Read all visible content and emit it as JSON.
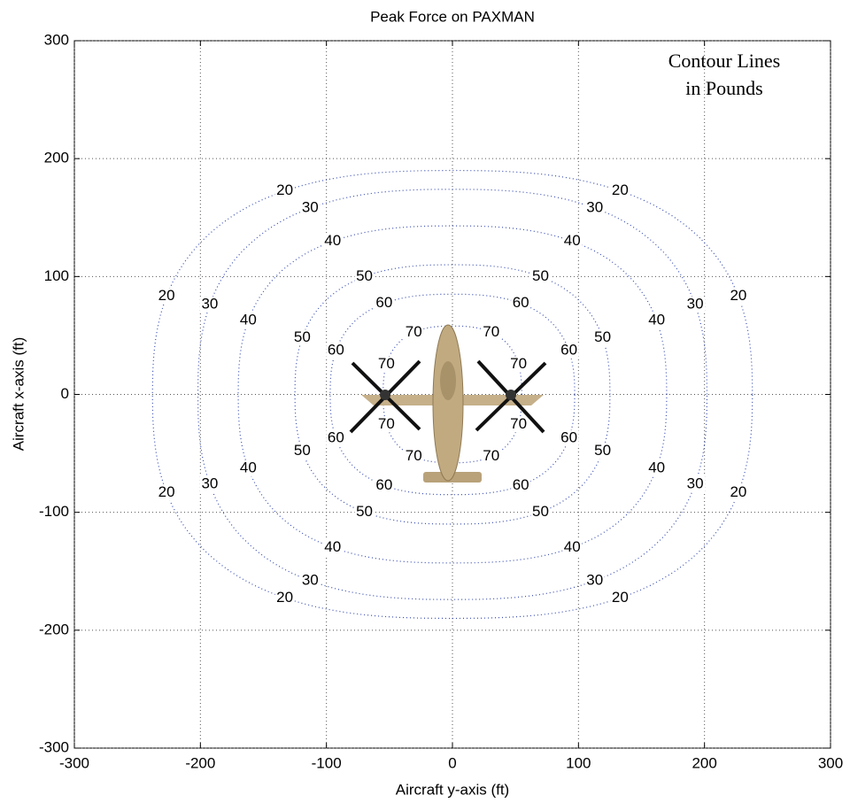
{
  "chart_data": {
    "type": "contour",
    "title": "Peak Force on PAXMAN",
    "x_label": "Aircraft y-axis (ft)",
    "y_label": "Aircraft x-axis (ft)",
    "annotation": [
      "Contour Lines",
      "in Pounds"
    ],
    "xlim": [
      -300,
      300
    ],
    "ylim": [
      -300,
      300
    ],
    "xticks": [
      -300,
      -200,
      -100,
      0,
      100,
      200,
      300
    ],
    "yticks": [
      -300,
      -200,
      -100,
      0,
      100,
      200,
      300
    ],
    "grid": true,
    "color": "#3a4fb0",
    "contours": [
      {
        "level": 20,
        "rx": 238,
        "ry": 190
      },
      {
        "level": 30,
        "rx": 202,
        "ry": 174
      },
      {
        "level": 40,
        "rx": 170,
        "ry": 143
      },
      {
        "level": 50,
        "rx": 125,
        "ry": 110
      },
      {
        "level": 60,
        "rx": 97,
        "ry": 85
      },
      {
        "level": 70,
        "rx": 55,
        "ry": 58
      }
    ]
  }
}
